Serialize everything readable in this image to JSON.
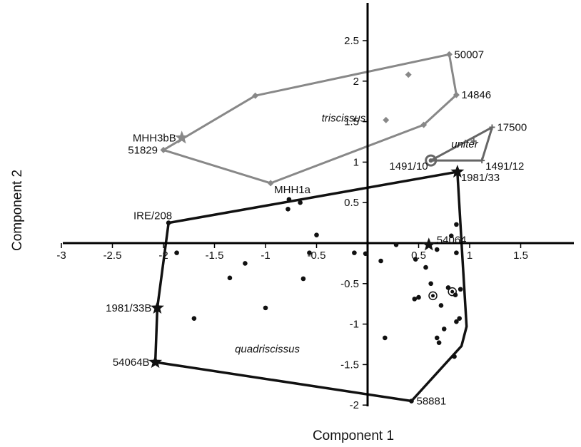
{
  "chart_data": {
    "type": "scatter",
    "xlabel": "Component 1",
    "ylabel": "Component 2",
    "xlim": [
      -3,
      2
    ],
    "ylim": [
      -2,
      3
    ],
    "x_ticks": [
      "-3",
      "-2.5",
      "-2",
      "-1.5",
      "-1",
      "-0.5",
      "0.5",
      "1",
      "1.5"
    ],
    "y_ticks": [
      "-2",
      "-1.5",
      "-1",
      "-0.5",
      "0.5",
      "1",
      "1.5",
      "2",
      "2.5"
    ],
    "colors": {
      "quadriscissus": "#111111",
      "triscissus": "#888888",
      "uniter": "#666666"
    },
    "groups": [
      {
        "name": "triscissus",
        "label_pos": [
          -0.45,
          1.5
        ],
        "hull": [
          [
            -2.0,
            1.15
          ],
          [
            -1.1,
            1.82
          ],
          [
            0.8,
            2.33
          ],
          [
            0.87,
            1.83
          ],
          [
            0.55,
            1.46
          ],
          [
            -0.95,
            0.74
          ]
        ],
        "points": [
          {
            "x": 0.8,
            "y": 2.33,
            "marker": "diamond",
            "label": "50007",
            "label_side": "right"
          },
          {
            "x": 0.87,
            "y": 1.83,
            "marker": "diamond",
            "label": "14846",
            "label_side": "right"
          },
          {
            "x": -1.82,
            "y": 1.3,
            "marker": "star",
            "label": "MHH3bB",
            "label_side": "left"
          },
          {
            "x": -2.0,
            "y": 1.15,
            "marker": "diamond",
            "label": "51829",
            "label_side": "left"
          },
          {
            "x": -0.95,
            "y": 0.74,
            "marker": "diamond",
            "label": "MHH1a",
            "label_side": "below-right"
          },
          {
            "x": -1.1,
            "y": 1.82,
            "marker": "diamond"
          },
          {
            "x": 0.4,
            "y": 2.08,
            "marker": "diamond"
          },
          {
            "x": 0.18,
            "y": 1.52,
            "marker": "diamond"
          },
          {
            "x": 0.55,
            "y": 1.46,
            "marker": "diamond"
          }
        ]
      },
      {
        "name": "uniter",
        "label_pos": [
          0.82,
          1.18
        ],
        "hull": [
          [
            0.62,
            1.02
          ],
          [
            1.22,
            1.43
          ],
          [
            1.12,
            1.02
          ]
        ],
        "points": [
          {
            "x": 1.22,
            "y": 1.43,
            "marker": "plus",
            "label": "17500",
            "label_side": "right"
          },
          {
            "x": 0.62,
            "y": 1.02,
            "marker": "ring-large",
            "label": "1491/10",
            "label_side": "left-below"
          },
          {
            "x": 1.12,
            "y": 1.02,
            "marker": "plus",
            "label": "1491/12",
            "label_side": "right-below"
          },
          {
            "x": 1.04,
            "y": 1.26,
            "marker": "plus"
          }
        ]
      },
      {
        "name": "quadriscissus",
        "label_pos": [
          -1.3,
          -1.35
        ],
        "hull": [
          [
            -1.95,
            0.25
          ],
          [
            0.88,
            0.88
          ],
          [
            0.93,
            -0.2
          ],
          [
            0.97,
            -1.03
          ],
          [
            0.92,
            -1.27
          ],
          [
            0.43,
            -1.95
          ],
          [
            -2.08,
            -1.47
          ],
          [
            -2.06,
            -0.8
          ]
        ],
        "points": [
          {
            "x": 0.88,
            "y": 0.88,
            "marker": "star",
            "label": "1981/33",
            "label_side": "right-below"
          },
          {
            "x": -1.95,
            "y": 0.25,
            "marker": "dot",
            "label": "IRE/208",
            "label_side": "left-above"
          },
          {
            "x": 0.6,
            "y": -0.02,
            "marker": "star",
            "label": "54064",
            "label_side": "right-above"
          },
          {
            "x": -2.06,
            "y": -0.8,
            "marker": "star",
            "label": "1981/33B",
            "label_side": "left"
          },
          {
            "x": -2.08,
            "y": -1.47,
            "marker": "star",
            "label": "54064B",
            "label_side": "left"
          },
          {
            "x": 0.43,
            "y": -1.95,
            "marker": "dot",
            "label": "58881",
            "label_side": "right"
          },
          {
            "x": -0.77,
            "y": 0.54,
            "marker": "dot"
          },
          {
            "x": -0.78,
            "y": 0.42,
            "marker": "dot"
          },
          {
            "x": -0.66,
            "y": 0.5,
            "marker": "dot"
          },
          {
            "x": -0.5,
            "y": 0.1,
            "marker": "dot"
          },
          {
            "x": -0.57,
            "y": -0.12,
            "marker": "dot"
          },
          {
            "x": -0.63,
            "y": -0.44,
            "marker": "dot"
          },
          {
            "x": -0.13,
            "y": -0.12,
            "marker": "dot"
          },
          {
            "x": -0.02,
            "y": -0.13,
            "marker": "dot"
          },
          {
            "x": 0.13,
            "y": -0.22,
            "marker": "dot"
          },
          {
            "x": 0.28,
            "y": -0.02,
            "marker": "dot"
          },
          {
            "x": 0.47,
            "y": -0.2,
            "marker": "dot"
          },
          {
            "x": 0.57,
            "y": -0.3,
            "marker": "dot"
          },
          {
            "x": 0.68,
            "y": -0.08,
            "marker": "dot"
          },
          {
            "x": 0.87,
            "y": 0.23,
            "marker": "dot"
          },
          {
            "x": 0.82,
            "y": 0.09,
            "marker": "dot"
          },
          {
            "x": 0.87,
            "y": -0.12,
            "marker": "dot"
          },
          {
            "x": 0.62,
            "y": -0.5,
            "marker": "dot"
          },
          {
            "x": 0.5,
            "y": -0.67,
            "marker": "dot"
          },
          {
            "x": 0.46,
            "y": -0.69,
            "marker": "dot"
          },
          {
            "x": 0.64,
            "y": -0.65,
            "marker": "ring"
          },
          {
            "x": 0.83,
            "y": -0.6,
            "marker": "ring"
          },
          {
            "x": 0.79,
            "y": -0.55,
            "marker": "dot"
          },
          {
            "x": 0.86,
            "y": -0.64,
            "marker": "dot"
          },
          {
            "x": 0.91,
            "y": -0.57,
            "marker": "dot"
          },
          {
            "x": 0.72,
            "y": -0.77,
            "marker": "dot"
          },
          {
            "x": 0.9,
            "y": -0.93,
            "marker": "dot"
          },
          {
            "x": 0.87,
            "y": -0.97,
            "marker": "dot"
          },
          {
            "x": 0.75,
            "y": -1.06,
            "marker": "dot"
          },
          {
            "x": 0.68,
            "y": -1.17,
            "marker": "dot"
          },
          {
            "x": 0.85,
            "y": -1.4,
            "marker": "dot"
          },
          {
            "x": 0.17,
            "y": -1.17,
            "marker": "dot"
          },
          {
            "x": 0.7,
            "y": -1.23,
            "marker": "dot"
          },
          {
            "x": -1.87,
            "y": -0.12,
            "marker": "dot"
          },
          {
            "x": -1.35,
            "y": -0.43,
            "marker": "dot"
          },
          {
            "x": -1.2,
            "y": -0.25,
            "marker": "dot"
          },
          {
            "x": -1.0,
            "y": -0.8,
            "marker": "dot"
          },
          {
            "x": -1.7,
            "y": -0.93,
            "marker": "dot"
          }
        ]
      }
    ]
  }
}
